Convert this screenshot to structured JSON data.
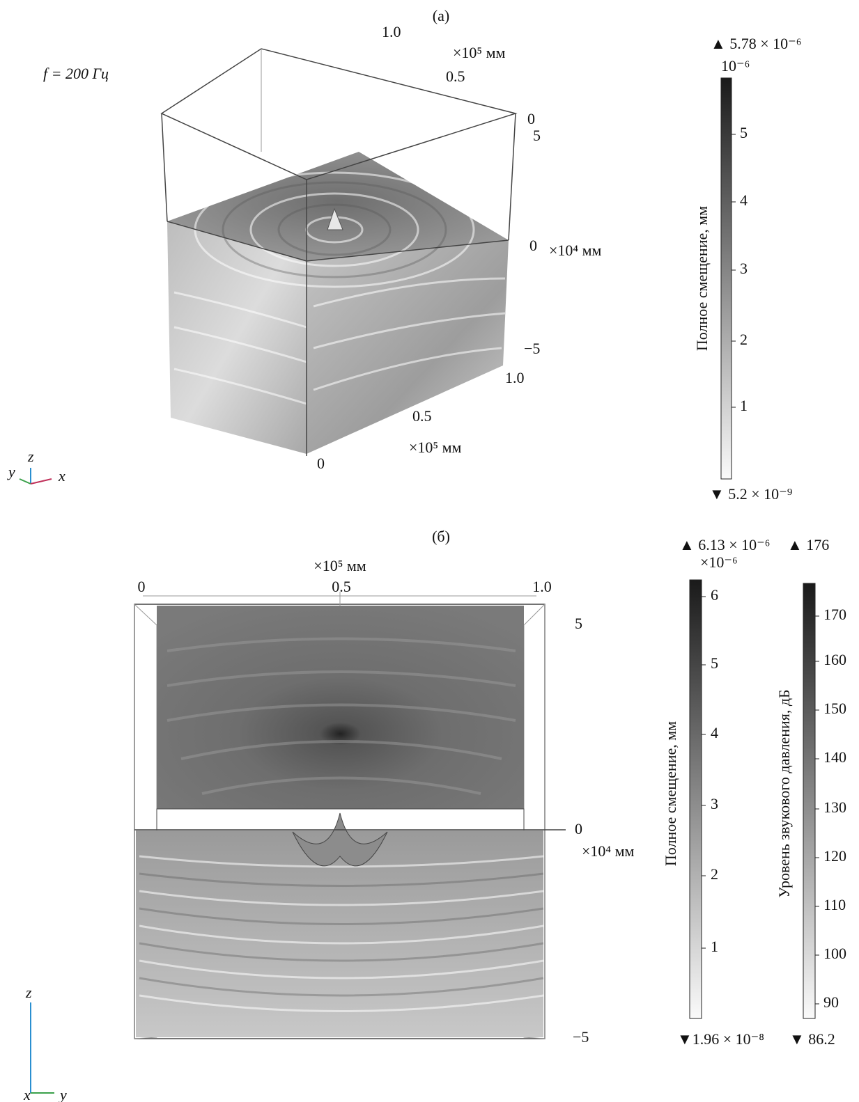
{
  "panel_a": {
    "label": "(а)",
    "frequency": "f = 200 Гц",
    "axes": {
      "y_top_max": "1.0",
      "y_top_unit": "×10⁵ мм",
      "y_top_mid": "0.5",
      "y_top_min": "0",
      "z_max": "5",
      "z_mid": "0",
      "z_unit": "×10⁴ мм",
      "z_min": "−5",
      "x_max": "1.0",
      "x_mid": "0.5",
      "x_unit": "×10⁵ мм",
      "x_min": "0"
    },
    "triad": [
      "y",
      "z",
      "x"
    ],
    "colorbar": {
      "title": "Полное смещение, мм",
      "max": "▲ 5.78 × 10⁻⁶",
      "scale": "10⁻⁶",
      "ticks": [
        "5",
        "4",
        "3",
        "2",
        "1"
      ],
      "min": "▼ 5.2 × 10⁻⁹"
    }
  },
  "panel_b": {
    "label": "(б)",
    "axes": {
      "top_unit": "×10⁵ мм",
      "top_min": "0",
      "top_mid": "0.5",
      "top_max": "1.0",
      "z_max": "5",
      "z_mid": "0",
      "z_unit": "×10⁴ мм",
      "z_min": "−5"
    },
    "triad": [
      "z",
      "x",
      "y"
    ],
    "colorbar_displacement": {
      "title": "Полное смещение, мм",
      "max": "▲ 6.13 × 10⁻⁶",
      "scale": "×10⁻⁶",
      "ticks": [
        "6",
        "5",
        "4",
        "3",
        "2",
        "1"
      ],
      "min": "▼1.96 × 10⁻⁸"
    },
    "colorbar_pressure": {
      "title": "Уровень звукового давления, дБ",
      "max": "▲ 176",
      "ticks": [
        "170",
        "160",
        "150",
        "140",
        "130",
        "120",
        "110",
        "100",
        "90"
      ],
      "min": "▼ 86.2"
    }
  }
}
